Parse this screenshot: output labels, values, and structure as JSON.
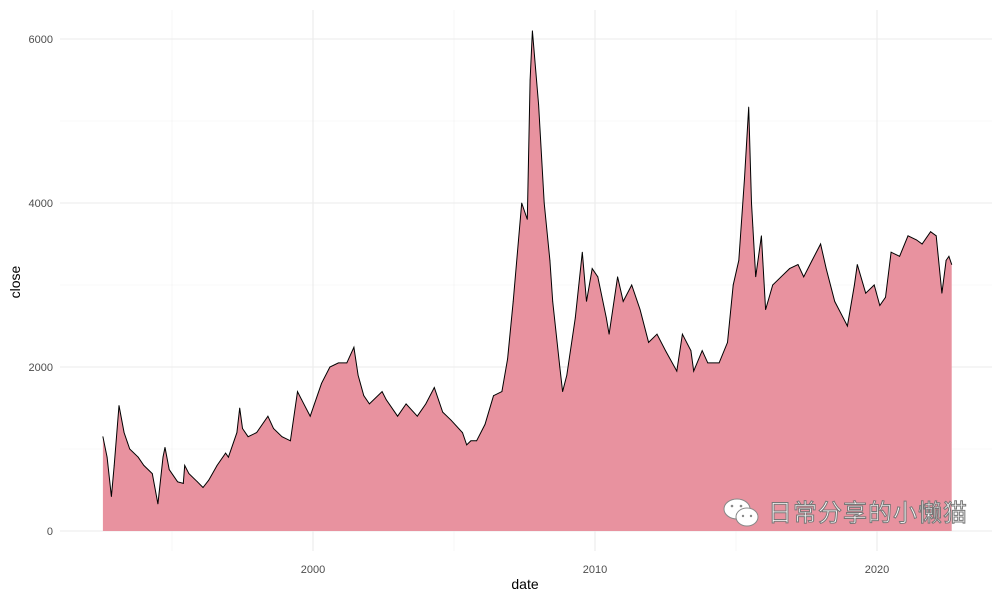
{
  "chart_data": {
    "type": "area",
    "title": "",
    "xlabel": "date",
    "ylabel": "close",
    "xlim": [
      1991.0,
      2024.0
    ],
    "ylim": [
      -250,
      6350
    ],
    "x_ticks": [
      2000,
      2010,
      2020
    ],
    "x_tick_labels": [
      "2000",
      "2010",
      "2020"
    ],
    "y_ticks": [
      0,
      2000,
      4000,
      6000
    ],
    "y_tick_labels": [
      "0",
      "2000",
      "4000",
      "6000"
    ],
    "grid": true,
    "legend": "none",
    "fill_color": "#e8929f",
    "line_color": "#000000",
    "series": [
      {
        "x": [
          1992.55,
          1992.7,
          1992.85,
          1992.95,
          1993.12,
          1993.3,
          1993.5,
          1993.8,
          1994.0,
          1994.3,
          1994.5,
          1994.68,
          1994.75,
          1994.9,
          1995.2,
          1995.4,
          1995.45,
          1995.6,
          1995.9,
          1996.1,
          1996.3,
          1996.6,
          1996.9,
          1997.0,
          1997.3,
          1997.4,
          1997.5,
          1997.7,
          1998.0,
          1998.4,
          1998.6,
          1998.9,
          1999.2,
          1999.45,
          1999.6,
          1999.9,
          2000.3,
          2000.6,
          2000.9,
          2001.2,
          2001.45,
          2001.6,
          2001.8,
          2002.0,
          2002.45,
          2002.6,
          2003.0,
          2003.3,
          2003.7,
          2004.0,
          2004.3,
          2004.6,
          2004.9,
          2005.3,
          2005.45,
          2005.6,
          2005.8,
          2006.1,
          2006.4,
          2006.7,
          2006.9,
          2007.1,
          2007.4,
          2007.6,
          2007.7,
          2007.78,
          2008.0,
          2008.2,
          2008.4,
          2008.5,
          2008.75,
          2008.85,
          2009.0,
          2009.3,
          2009.55,
          2009.7,
          2009.9,
          2010.1,
          2010.4,
          2010.5,
          2010.8,
          2011.0,
          2011.3,
          2011.6,
          2011.9,
          2012.2,
          2012.5,
          2012.9,
          2013.1,
          2013.4,
          2013.5,
          2013.8,
          2014.0,
          2014.4,
          2014.7,
          2014.9,
          2015.1,
          2015.3,
          2015.45,
          2015.55,
          2015.6,
          2015.7,
          2015.9,
          2016.05,
          2016.3,
          2016.6,
          2016.9,
          2017.2,
          2017.4,
          2017.7,
          2018.0,
          2018.2,
          2018.5,
          2018.8,
          2018.95,
          2019.2,
          2019.3,
          2019.6,
          2019.9,
          2020.1,
          2020.3,
          2020.5,
          2020.8,
          2021.1,
          2021.4,
          2021.6,
          2021.9,
          2022.1,
          2022.3,
          2022.45,
          2022.55,
          2022.65
        ],
        "values": [
          1150,
          900,
          420,
          800,
          1530,
          1200,
          1000,
          900,
          800,
          700,
          330,
          900,
          1020,
          750,
          600,
          580,
          800,
          700,
          600,
          530,
          620,
          800,
          950,
          900,
          1200,
          1500,
          1250,
          1150,
          1200,
          1400,
          1250,
          1150,
          1100,
          1700,
          1600,
          1400,
          1800,
          2000,
          2050,
          2050,
          2240,
          1900,
          1650,
          1550,
          1700,
          1600,
          1400,
          1550,
          1400,
          1550,
          1750,
          1450,
          1350,
          1200,
          1050,
          1100,
          1100,
          1300,
          1650,
          1700,
          2100,
          2800,
          4000,
          3800,
          5500,
          6100,
          5200,
          4000,
          3300,
          2800,
          2000,
          1700,
          1900,
          2600,
          3400,
          2800,
          3200,
          3100,
          2600,
          2400,
          3100,
          2800,
          3000,
          2700,
          2300,
          2400,
          2200,
          1950,
          2400,
          2200,
          1950,
          2200,
          2050,
          2050,
          2300,
          3000,
          3300,
          4300,
          5170,
          4000,
          3700,
          3100,
          3600,
          2700,
          3000,
          3100,
          3200,
          3250,
          3100,
          3300,
          3500,
          3200,
          2800,
          2600,
          2500,
          3000,
          3250,
          2900,
          3000,
          2750,
          2850,
          3400,
          3350,
          3600,
          3550,
          3500,
          3650,
          3600,
          2900,
          3300,
          3350,
          3250
        ]
      }
    ]
  },
  "watermark": {
    "icon": "wechat-icon",
    "text": "日常分享的小懒猫"
  }
}
